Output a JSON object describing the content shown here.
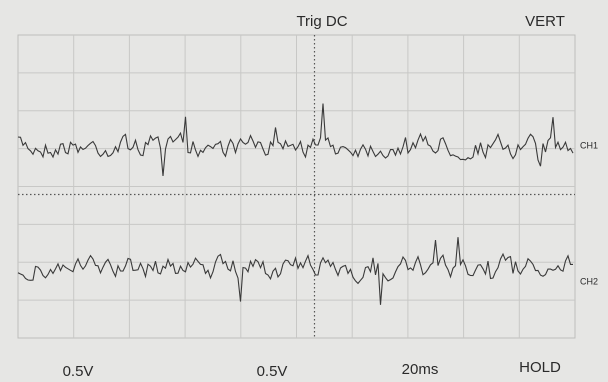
{
  "header": {
    "trigger": "Trig DC",
    "mode": "VERT"
  },
  "channels": [
    {
      "label": "CH1"
    },
    {
      "label": "CH2"
    }
  ],
  "footer": {
    "ch1_scale": "0.5V",
    "ch2_scale": "0.5V",
    "timebase": "20ms",
    "status": "HOLD"
  }
}
